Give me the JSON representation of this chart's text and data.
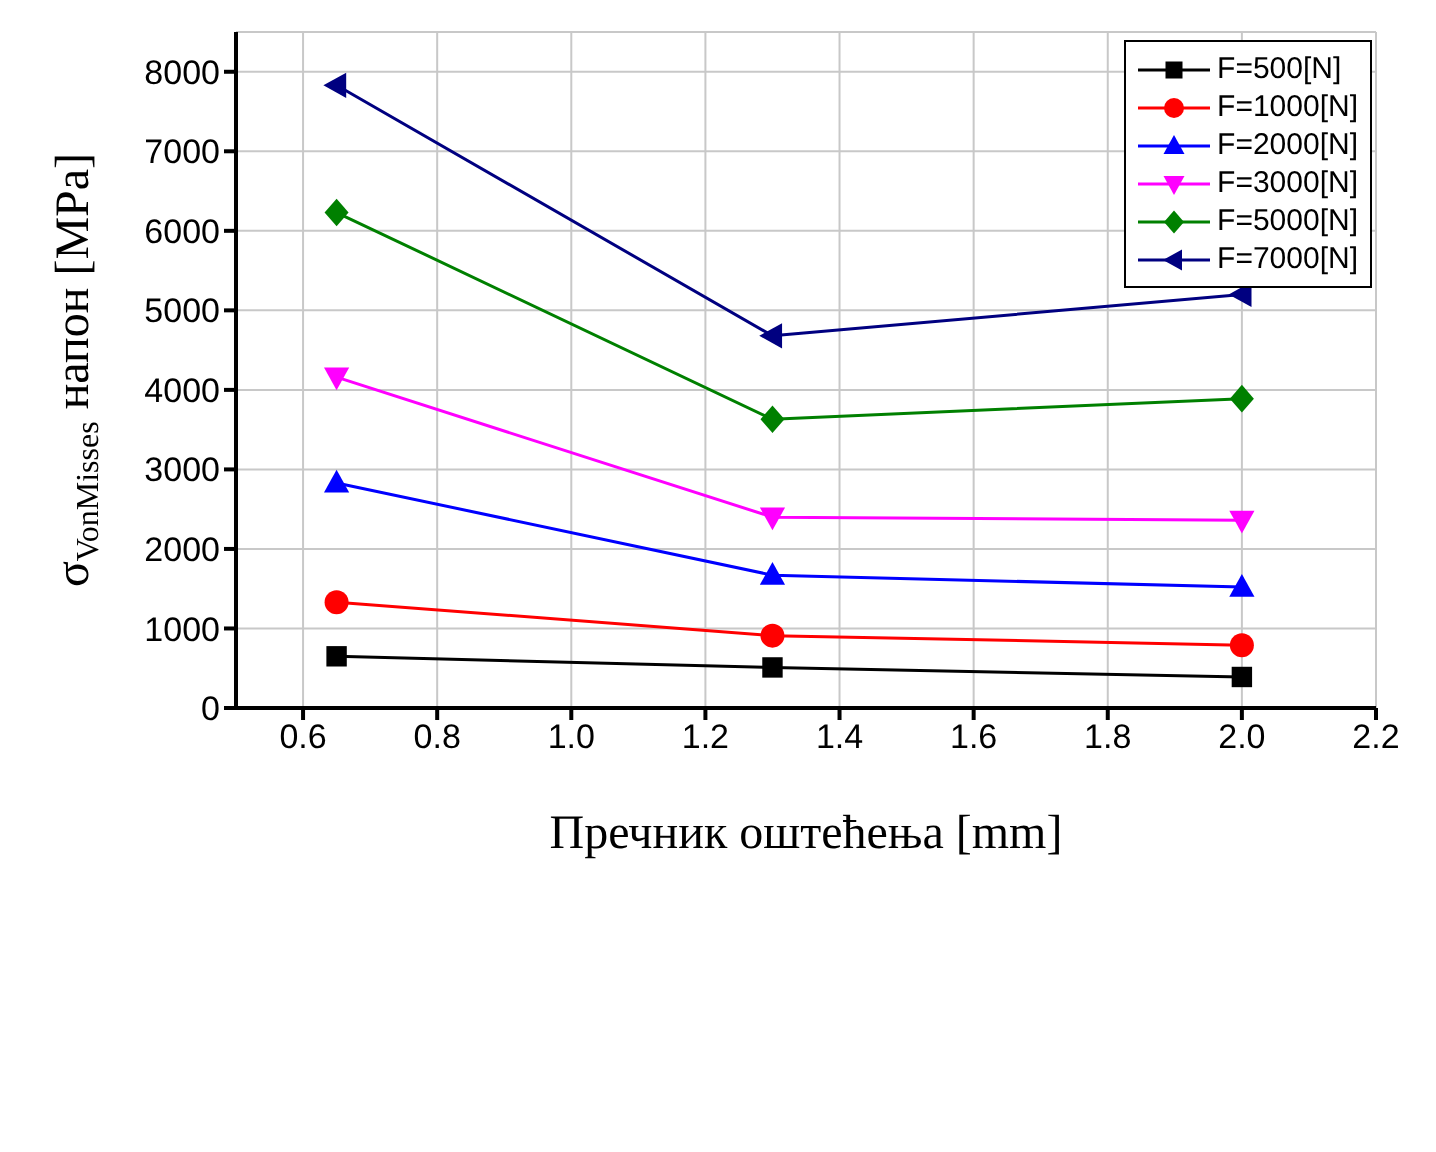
{
  "chart_data": {
    "type": "line",
    "xlabel": "Пречник оштећења [mm]",
    "ylabel": "σ$_{VonMisses}$ напон [MPa]",
    "x": [
      0.65,
      1.3,
      2.0
    ],
    "series": [
      {
        "name": "F=500[N]",
        "color": "#000000",
        "marker": "square",
        "values": [
          650,
          510,
          390
        ]
      },
      {
        "name": "F=1000[N]",
        "color": "#ff0000",
        "marker": "circle",
        "values": [
          1330,
          910,
          790
        ]
      },
      {
        "name": "F=2000[N]",
        "color": "#0000ff",
        "marker": "triangle",
        "values": [
          2830,
          1670,
          1520
        ]
      },
      {
        "name": "F=3000[N]",
        "color": "#ff00ff",
        "marker": "triangle-down",
        "values": [
          4160,
          2400,
          2360
        ]
      },
      {
        "name": "F=5000[N]",
        "color": "#008000",
        "marker": "diamond",
        "values": [
          6230,
          3630,
          3890
        ]
      },
      {
        "name": "F=7000[N]",
        "color": "#000080",
        "marker": "triangle-left",
        "values": [
          7830,
          4680,
          5200
        ]
      }
    ],
    "xlim": [
      0.5,
      2.2
    ],
    "xticks": [
      0.6,
      0.8,
      {
        "value": 1,
        "label": "1.0"
      },
      1.2,
      1.4,
      1.6,
      1.8,
      {
        "value": 2,
        "label": "2.0"
      },
      2.2
    ],
    "ylim": [
      0,
      8500
    ],
    "yticks": [
      0,
      1000,
      2000,
      3000,
      4000,
      5000,
      6000,
      7000,
      8000
    ],
    "grid": true,
    "legend": "top right"
  }
}
